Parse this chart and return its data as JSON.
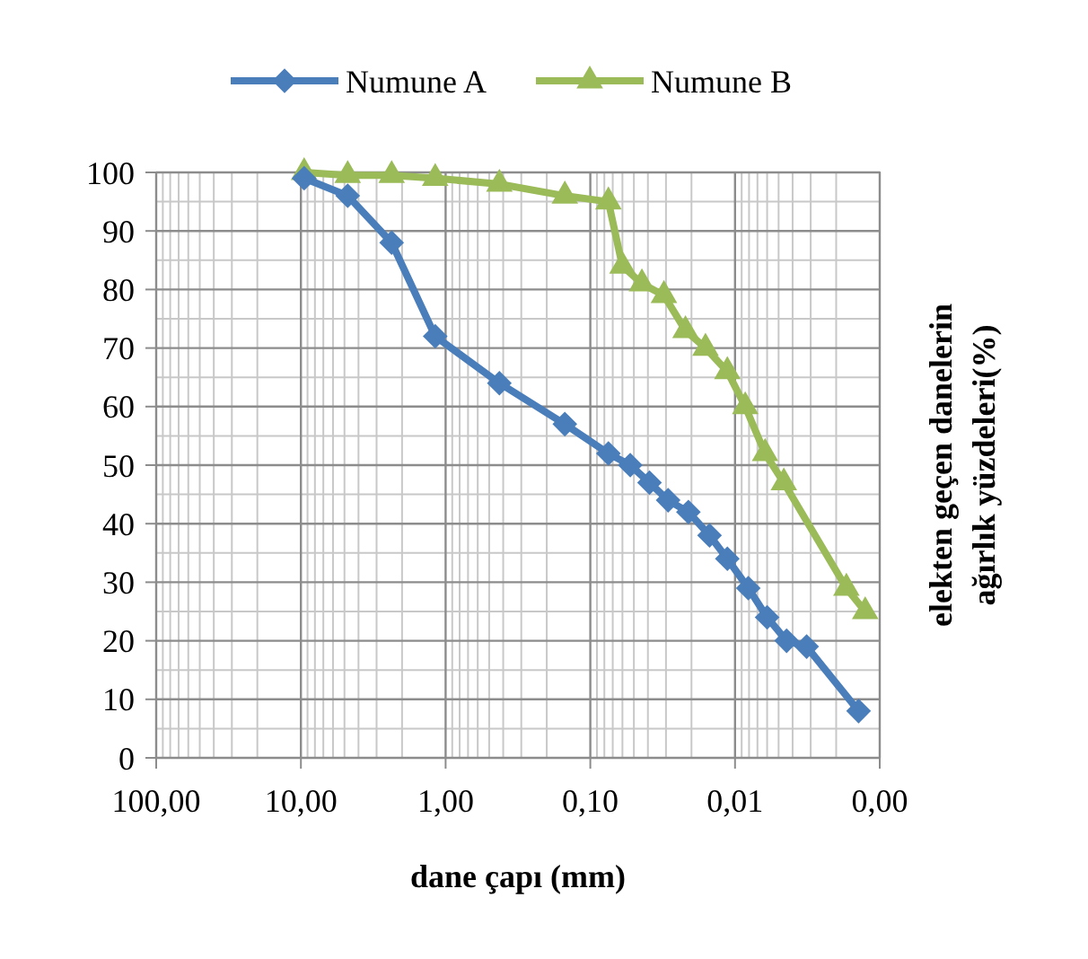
{
  "chart_data": {
    "type": "line",
    "xlabel": "dane çapı (mm)",
    "ylabel": "elekten geçen danelerin ağırlık yüzdeleri(%)",
    "log": "x",
    "grid": true,
    "legend": "top",
    "line_style": "solid",
    "xlim": [
      100,
      0.001
    ],
    "xticks": [
      {
        "value": 100,
        "label": "100,00"
      },
      {
        "value": 10,
        "label": "10,00"
      },
      {
        "value": 1,
        "label": "1,00"
      },
      {
        "value": 0.1,
        "label": "0,10"
      },
      {
        "value": 0.01,
        "label": "0,01"
      },
      {
        "value": 0.001,
        "label": "0,00"
      }
    ],
    "ylim": [
      0,
      100
    ],
    "yticks": [
      0,
      10,
      20,
      30,
      40,
      50,
      60,
      70,
      80,
      90,
      100
    ],
    "series": [
      {
        "name": "Numune A",
        "color": "#4a7ebb",
        "marker": "diamond",
        "x": [
          9.5,
          4.75,
          2.36,
          1.18,
          0.425,
          0.15,
          0.075,
          0.053,
          0.039,
          0.029,
          0.021,
          0.015,
          0.0113,
          0.0081,
          0.006,
          0.0044,
          0.0032,
          0.0014
        ],
        "values": [
          99,
          96,
          88,
          72,
          64,
          57,
          52,
          50,
          47,
          44,
          42,
          38,
          34,
          29,
          24,
          20,
          19,
          8
        ]
      },
      {
        "name": "Numune B",
        "color": "#9bbb59",
        "marker": "triangle",
        "x": [
          9.5,
          4.75,
          2.36,
          1.18,
          0.425,
          0.15,
          0.075,
          0.06,
          0.044,
          0.031,
          0.022,
          0.016,
          0.0113,
          0.0085,
          0.0062,
          0.0046,
          0.0017,
          0.00126
        ],
        "values": [
          100,
          99.5,
          99.5,
          99,
          98,
          96,
          95,
          84,
          81,
          79,
          73,
          70,
          66,
          60,
          52,
          47,
          29,
          25
        ]
      }
    ]
  }
}
